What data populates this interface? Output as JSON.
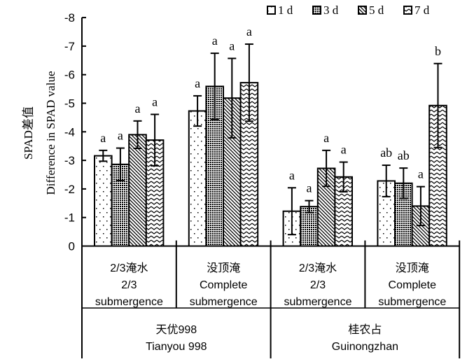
{
  "chart_data": {
    "type": "bar",
    "title": "",
    "ylabel_cn": "SPAD差值",
    "ylabel": "Difference in SPAD value",
    "ylim": [
      0,
      -8
    ],
    "y_ticks": [
      "0",
      "-1",
      "-2",
      "-3",
      "-4",
      "-5",
      "-6",
      "-7",
      "-8"
    ],
    "y_tick_values": [
      0,
      -1,
      -2,
      -3,
      -4,
      -5,
      -6,
      -7,
      -8
    ],
    "legend_position": "top-right",
    "categories": [
      {
        "cn": "2/3淹水",
        "en1": "2/3",
        "en2": "submergence"
      },
      {
        "cn": "没顶淹",
        "en1": "Complete",
        "en2": "submergence"
      },
      {
        "cn": "2/3淹水",
        "en1": "2/3",
        "en2": "submergence"
      },
      {
        "cn": "没顶淹",
        "en1": "Complete",
        "en2": "submergence"
      }
    ],
    "varieties": [
      {
        "cn": "天优998",
        "en": "Tianyou 998"
      },
      {
        "cn": "桂农占",
        "en": "Guinongzhan"
      }
    ],
    "series": [
      {
        "name": "1 d",
        "pattern": "dots",
        "values": [
          -3.16,
          -4.73,
          -1.22,
          -2.28
        ],
        "errors": [
          0.19,
          0.53,
          0.82,
          0.55
        ],
        "letters": [
          "a",
          "a",
          "a",
          "ab"
        ]
      },
      {
        "name": "3 d",
        "pattern": "grid",
        "values": [
          -2.86,
          -5.59,
          -1.38,
          -2.2
        ],
        "errors": [
          0.57,
          1.16,
          0.21,
          0.53
        ],
        "letters": [
          "a",
          "a",
          "a",
          "ab"
        ]
      },
      {
        "name": "5 d",
        "pattern": "diag",
        "values": [
          -3.9,
          -5.18,
          -2.72,
          -1.4
        ],
        "errors": [
          0.48,
          1.39,
          0.63,
          0.68
        ],
        "letters": [
          "a",
          "a",
          "a",
          "a"
        ]
      },
      {
        "name": "7 d",
        "pattern": "wave",
        "values": [
          -3.71,
          -5.72,
          -2.42,
          -4.92
        ],
        "errors": [
          0.9,
          1.35,
          0.52,
          1.47
        ],
        "letters": [
          "a",
          "a",
          "a",
          "b"
        ]
      }
    ]
  }
}
